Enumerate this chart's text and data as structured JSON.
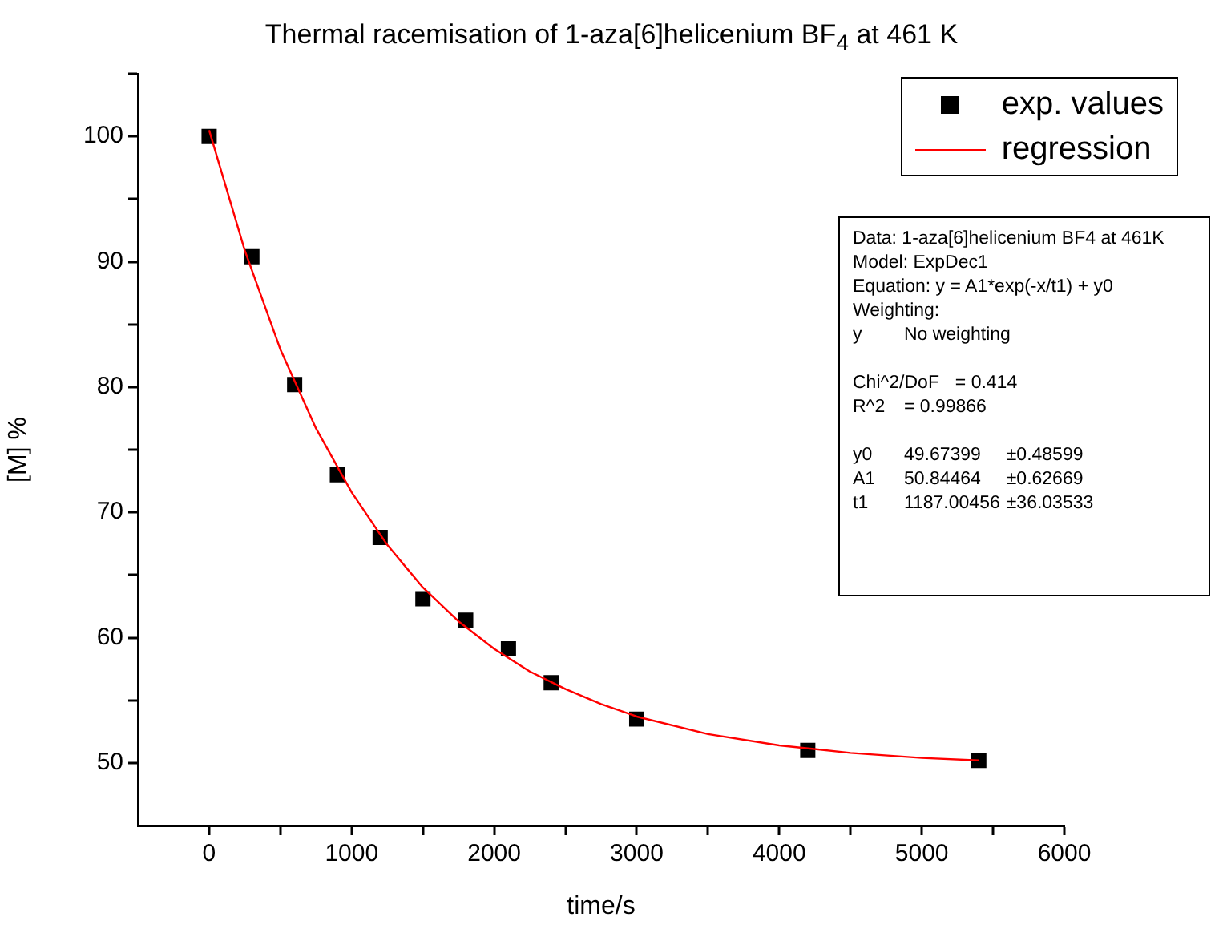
{
  "chart_data": {
    "type": "scatter",
    "title": "Thermal racemisation of 1-aza[6]helicenium BF$_{4}$ at 461 K",
    "xlabel": "time/s",
    "ylabel": "[M] %",
    "xlim": [
      -500,
      6000
    ],
    "xticks": [
      0,
      {
        "value": 500,
        "label": null
      },
      1000,
      {
        "value": 1500,
        "label": null
      },
      2000,
      {
        "value": 2500,
        "label": null
      },
      3000,
      {
        "value": 3500,
        "label": null
      },
      4000,
      {
        "value": 4500,
        "label": null
      },
      5000,
      {
        "value": 5500,
        "label": null
      },
      6000
    ],
    "ylim": [
      45,
      105
    ],
    "yticks": [
      50,
      {
        "value": 55,
        "label": null
      },
      60,
      {
        "value": 65,
        "label": null
      },
      70,
      {
        "value": 75,
        "label": null
      },
      80,
      {
        "value": 85,
        "label": null
      },
      90,
      {
        "value": 95,
        "label": null
      },
      100,
      {
        "value": 105,
        "label": null
      }
    ],
    "series": [
      {
        "name": "exp. values",
        "type": "scatter",
        "color": "#000000",
        "marker": "square",
        "x": [
          0,
          300,
          600,
          900,
          1200,
          1500,
          1800,
          2100,
          2400,
          3000,
          4200,
          5400
        ],
        "values": [
          100,
          90.4,
          80.2,
          73.0,
          68.0,
          63.1,
          61.4,
          59.1,
          56.4,
          53.5,
          51.0,
          50.2
        ]
      },
      {
        "name": "regression",
        "type": "line",
        "color": "#ff0000",
        "marker": "none",
        "line_style": "solid",
        "x": [
          0,
          250,
          500,
          750,
          1000,
          1250,
          1500,
          1750,
          2000,
          2250,
          2500,
          2750,
          3000,
          3500,
          4000,
          4500,
          5000,
          5400
        ],
        "values": [
          100.5,
          90.9,
          83.0,
          76.7,
          71.6,
          67.4,
          64.0,
          61.3,
          59.1,
          57.3,
          55.9,
          54.7,
          53.7,
          52.3,
          51.4,
          50.8,
          50.4,
          50.2
        ]
      }
    ],
    "legend": "top right",
    "grid": false,
    "annotations": [
      "Data: 1-aza[6]helicenium BF4 at 461K\nModel: ExpDec1\nEquation: y = A1*exp(-x/t1) + y0\nWeighting:\ny\tNo weighting",
      "Chi^2/DoF\t= 0.414\nR^2\t= 0.99866",
      "y0\t49.67399\t±0.48599\nA1\t50.84464\t±0.62669\nt1\t1187.00456\t±36.03533"
    ]
  }
}
